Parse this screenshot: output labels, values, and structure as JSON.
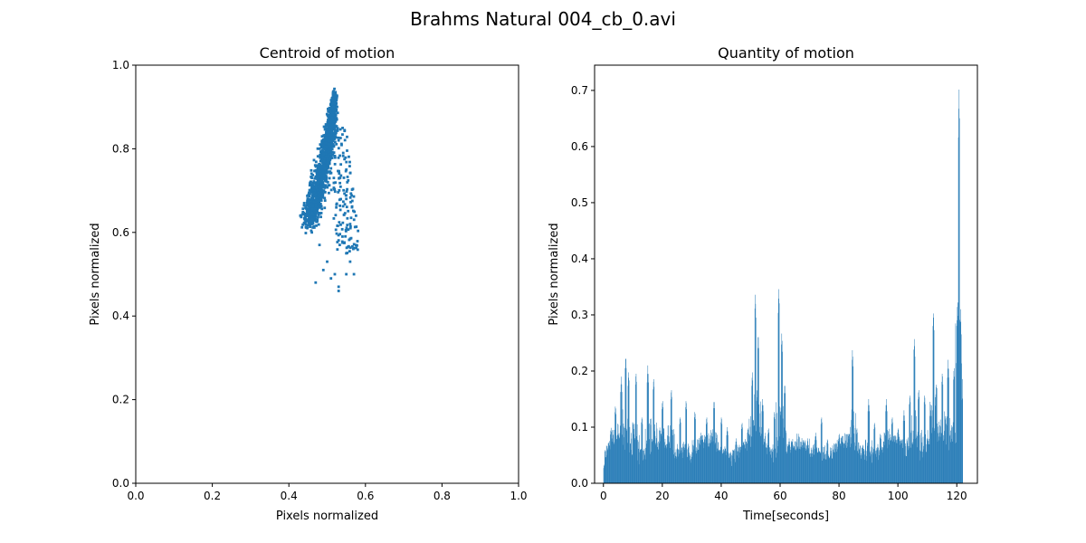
{
  "figure_title": "Brahms Natural 004_cb_0.avi",
  "colors": {
    "series": "#1f77b4",
    "axis": "#000000",
    "background": "#ffffff"
  },
  "chart_data": [
    {
      "type": "scatter",
      "title": "Centroid of motion",
      "xlabel": "Pixels normalized",
      "ylabel": "Pixels normalized",
      "xlim": [
        0,
        1
      ],
      "ylim": [
        0,
        1
      ],
      "xticks": [
        "0.0",
        "0.2",
        "0.4",
        "0.6",
        "0.8",
        "1.0"
      ],
      "yticks": [
        "0.0",
        "0.2",
        "0.4",
        "0.6",
        "0.8",
        "1.0"
      ],
      "grid": false,
      "cluster": {
        "description_points_approx": "dense elongated cloud",
        "core_path": [
          [
            0.45,
            0.62
          ],
          [
            0.47,
            0.68
          ],
          [
            0.49,
            0.76
          ],
          [
            0.51,
            0.85
          ],
          [
            0.52,
            0.93
          ]
        ],
        "outliers": [
          [
            0.47,
            0.48
          ],
          [
            0.53,
            0.46
          ],
          [
            0.52,
            0.5
          ],
          [
            0.55,
            0.5
          ],
          [
            0.57,
            0.5
          ],
          [
            0.56,
            0.53
          ],
          [
            0.55,
            0.55
          ],
          [
            0.54,
            0.59
          ],
          [
            0.56,
            0.62
          ],
          [
            0.55,
            0.68
          ],
          [
            0.55,
            0.75
          ],
          [
            0.53,
            0.82
          ],
          [
            0.43,
            0.64
          ],
          [
            0.44,
            0.67
          ],
          [
            0.46,
            0.6
          ],
          [
            0.48,
            0.57
          ],
          [
            0.5,
            0.53
          ],
          [
            0.49,
            0.51
          ],
          [
            0.51,
            0.49
          ],
          [
            0.53,
            0.47
          ]
        ]
      }
    },
    {
      "type": "bar",
      "title": "Quantity of motion",
      "xlabel": "Time[seconds]",
      "ylabel": "Pixels normalized",
      "xlim": [
        -3,
        127
      ],
      "ylim": [
        0,
        0.745
      ],
      "xticks": [
        "0",
        "20",
        "40",
        "60",
        "80",
        "100",
        "120"
      ],
      "yticks": [
        "0.0",
        "0.1",
        "0.2",
        "0.3",
        "0.4",
        "0.5",
        "0.6",
        "0.7"
      ],
      "grid": false,
      "time_range": [
        0,
        122
      ],
      "peaks": [
        {
          "t": 0.2,
          "v": 0.02
        },
        {
          "t": 1.5,
          "v": 0.05
        },
        {
          "t": 2.5,
          "v": 0.1
        },
        {
          "t": 4,
          "v": 0.14
        },
        {
          "t": 6,
          "v": 0.19
        },
        {
          "t": 7.5,
          "v": 0.23
        },
        {
          "t": 8.5,
          "v": 0.2
        },
        {
          "t": 10,
          "v": 0.11
        },
        {
          "t": 11,
          "v": 0.2
        },
        {
          "t": 13,
          "v": 0.12
        },
        {
          "t": 15,
          "v": 0.21
        },
        {
          "t": 17,
          "v": 0.19
        },
        {
          "t": 20,
          "v": 0.15
        },
        {
          "t": 23,
          "v": 0.17
        },
        {
          "t": 26,
          "v": 0.12
        },
        {
          "t": 28,
          "v": 0.15
        },
        {
          "t": 31,
          "v": 0.13
        },
        {
          "t": 33,
          "v": 0.09
        },
        {
          "t": 35,
          "v": 0.12
        },
        {
          "t": 37.5,
          "v": 0.15
        },
        {
          "t": 40,
          "v": 0.12
        },
        {
          "t": 42,
          "v": 0.1
        },
        {
          "t": 45,
          "v": 0.08
        },
        {
          "t": 47,
          "v": 0.11
        },
        {
          "t": 49,
          "v": 0.1
        },
        {
          "t": 50.5,
          "v": 0.2
        },
        {
          "t": 51.5,
          "v": 0.34
        },
        {
          "t": 52.5,
          "v": 0.27
        },
        {
          "t": 54,
          "v": 0.15
        },
        {
          "t": 56,
          "v": 0.1
        },
        {
          "t": 58,
          "v": 0.13
        },
        {
          "t": 59.5,
          "v": 0.35
        },
        {
          "t": 60.5,
          "v": 0.27
        },
        {
          "t": 61.5,
          "v": 0.18
        },
        {
          "t": 63,
          "v": 0.08
        },
        {
          "t": 66,
          "v": 0.04
        },
        {
          "t": 69,
          "v": 0.06
        },
        {
          "t": 72,
          "v": 0.09
        },
        {
          "t": 74,
          "v": 0.12
        },
        {
          "t": 76,
          "v": 0.08
        },
        {
          "t": 78,
          "v": 0.06
        },
        {
          "t": 80,
          "v": 0.09
        },
        {
          "t": 82,
          "v": 0.07
        },
        {
          "t": 84.5,
          "v": 0.24
        },
        {
          "t": 86,
          "v": 0.1
        },
        {
          "t": 88,
          "v": 0.07
        },
        {
          "t": 90,
          "v": 0.15
        },
        {
          "t": 92,
          "v": 0.11
        },
        {
          "t": 94,
          "v": 0.09
        },
        {
          "t": 96,
          "v": 0.15
        },
        {
          "t": 98,
          "v": 0.12
        },
        {
          "t": 100,
          "v": 0.1
        },
        {
          "t": 102,
          "v": 0.13
        },
        {
          "t": 104,
          "v": 0.16
        },
        {
          "t": 105.5,
          "v": 0.26
        },
        {
          "t": 107,
          "v": 0.17
        },
        {
          "t": 109,
          "v": 0.16
        },
        {
          "t": 111,
          "v": 0.14
        },
        {
          "t": 112,
          "v": 0.31
        },
        {
          "t": 113,
          "v": 0.18
        },
        {
          "t": 115,
          "v": 0.2
        },
        {
          "t": 117,
          "v": 0.22
        },
        {
          "t": 119,
          "v": 0.21
        },
        {
          "t": 120.2,
          "v": 0.33
        },
        {
          "t": 120.7,
          "v": 0.71
        },
        {
          "t": 121.2,
          "v": 0.31
        },
        {
          "t": 121.7,
          "v": 0.15
        }
      ]
    }
  ]
}
